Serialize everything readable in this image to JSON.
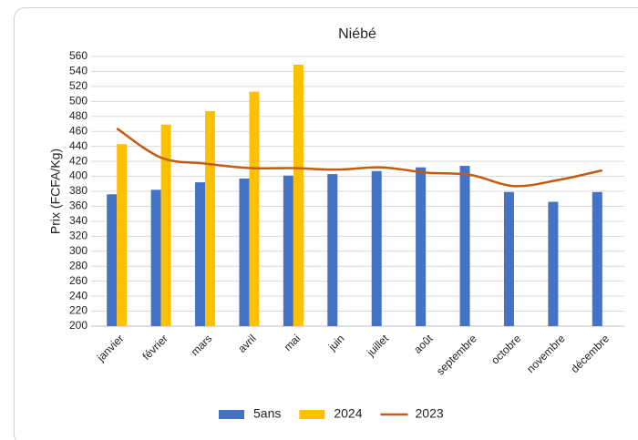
{
  "chart_data": {
    "type": "bar",
    "title": "Niébé",
    "y_label": "Prix (FCFA/Kg)",
    "categories": [
      "janvier",
      "février",
      "mars",
      "avril",
      "mai",
      "juin",
      "juillet",
      "août",
      "septembre",
      "octobre",
      "novembre",
      "décembre"
    ],
    "series": [
      {
        "name": "5ans",
        "type": "bar",
        "color": "#4472c4",
        "values": [
          376,
          382,
          392,
          397,
          401,
          403,
          407,
          412,
          414,
          379,
          366,
          379
        ]
      },
      {
        "name": "2024",
        "type": "bar",
        "color": "#ffc000",
        "values": [
          443,
          469,
          487,
          513,
          549,
          null,
          null,
          null,
          null,
          null,
          null,
          null
        ]
      },
      {
        "name": "2023",
        "type": "line",
        "color": "#c55a11",
        "values": [
          464,
          425,
          417,
          411,
          411,
          409,
          412,
          405,
          402,
          387,
          395,
          408
        ]
      }
    ],
    "ylim": [
      200,
      560
    ],
    "yticks": [
      200,
      220,
      240,
      260,
      280,
      300,
      320,
      340,
      360,
      380,
      400,
      420,
      440,
      460,
      480,
      500,
      520,
      540,
      560
    ],
    "grid": true,
    "legend": "bottom"
  }
}
